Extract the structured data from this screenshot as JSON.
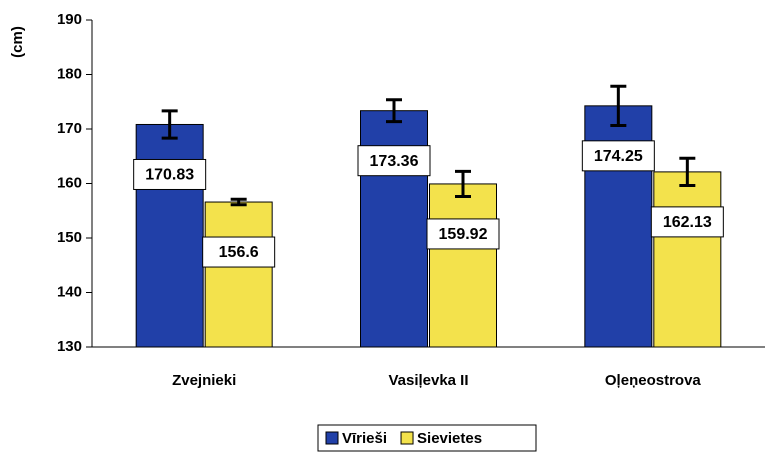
{
  "chart_data": {
    "type": "bar",
    "y_label": "(cm)",
    "categories": [
      "Zvejnieki",
      "Vasiļevka II",
      "Oļeņeostrova"
    ],
    "series": [
      {
        "name": "Vīrieši",
        "color": "#2140a8",
        "values": [
          170.83,
          173.36,
          174.25
        ],
        "errors": [
          2.5,
          2,
          3.6
        ]
      },
      {
        "name": "Sievietes",
        "color": "#f3e24c",
        "values": [
          156.6,
          159.92,
          162.13
        ],
        "errors": [
          0.5,
          2.3,
          2.5
        ]
      }
    ],
    "ylim": [
      130,
      190
    ],
    "yticks": [
      130,
      140,
      150,
      160,
      170,
      180,
      190
    ],
    "legend": "bottom"
  }
}
